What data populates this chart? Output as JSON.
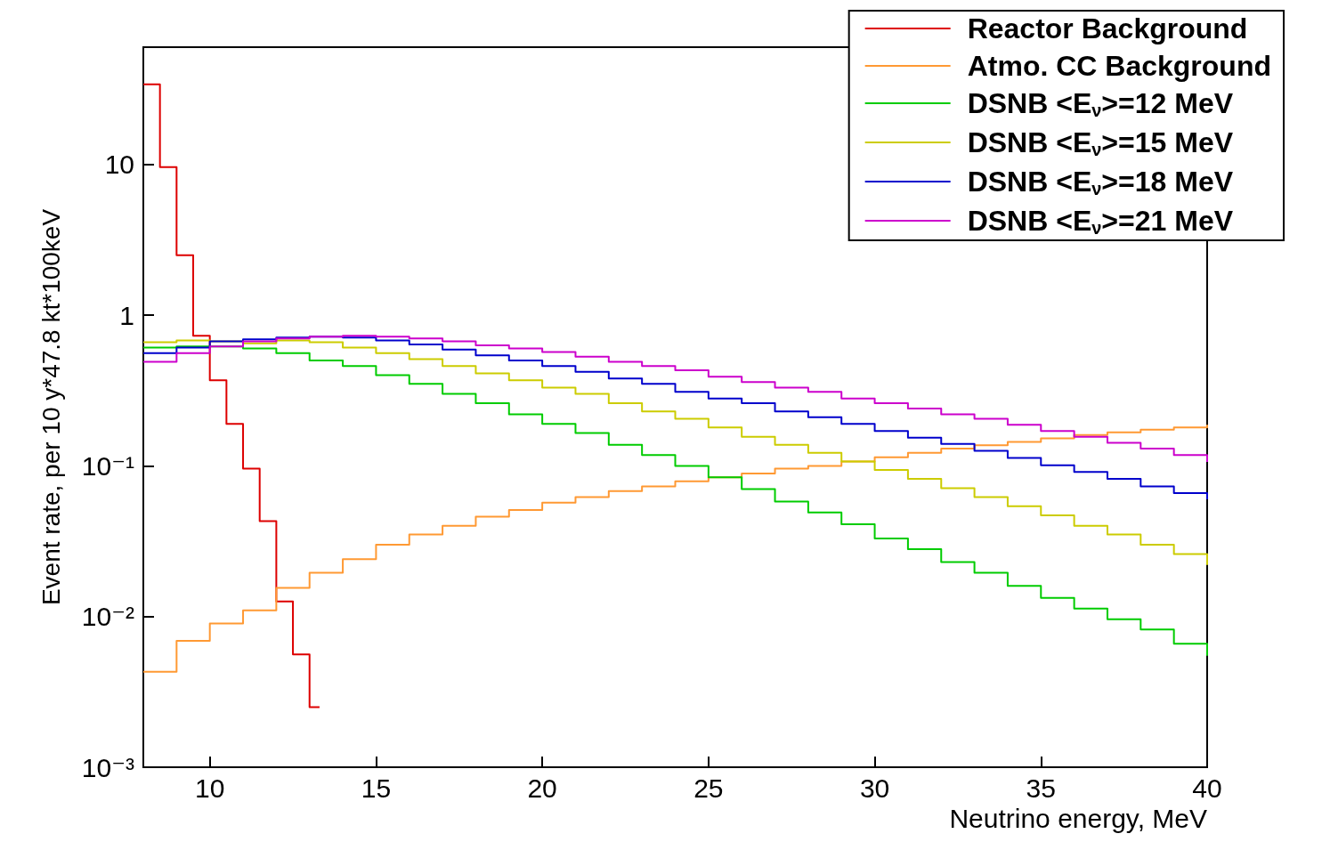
{
  "chart_data": {
    "type": "step",
    "xlabel": "Neutrino energy, MeV",
    "ylabel": "Event rate, per 10 y*47.8 kt*100keV",
    "log": "y",
    "marker": "none",
    "legend": "top right",
    "xlim": [
      8,
      40
    ],
    "xticks": [
      10,
      15,
      20,
      25,
      30,
      35,
      40
    ],
    "ylim": [
      0.001,
      60
    ],
    "yticks": [
      {
        "value": 0.001,
        "label": "10⁻³"
      },
      {
        "value": 0.01,
        "label": "10⁻²"
      },
      {
        "value": 0.1,
        "label": "10⁻¹"
      },
      1,
      10
    ],
    "x": [
      8,
      9,
      10,
      11,
      12,
      13,
      14,
      15,
      16,
      17,
      18,
      19,
      20,
      21,
      22,
      23,
      24,
      25,
      26,
      27,
      28,
      29,
      30,
      31,
      32,
      33,
      34,
      35,
      36,
      37,
      38,
      39,
      40
    ],
    "series": [
      {
        "name": "Reactor Background",
        "color": "#dd0000",
        "x": [
          8,
          8.5,
          9,
          9.5,
          10,
          10.5,
          11,
          11.5,
          12,
          12.5,
          13,
          13.3
        ],
        "values": [
          34,
          9.6,
          2.5,
          0.73,
          0.37,
          0.19,
          0.096,
          0.043,
          0.0126,
          0.0056,
          0.0025,
          0.0025
        ]
      },
      {
        "name": "Atmo. CC Background",
        "color": "#ff9933",
        "values": [
          0.0043,
          0.0069,
          0.009,
          0.011,
          0.0155,
          0.0195,
          0.024,
          0.03,
          0.035,
          0.04,
          0.046,
          0.051,
          0.057,
          0.062,
          0.068,
          0.073,
          0.079,
          0.084,
          0.089,
          0.096,
          0.1,
          0.107,
          0.114,
          0.122,
          0.13,
          0.137,
          0.144,
          0.152,
          0.16,
          0.167,
          0.174,
          0.18,
          0.187
        ]
      },
      {
        "name": "DSNB <E$_{ν}$>=12 MeV",
        "color": "#00cc00",
        "values": [
          0.61,
          0.62,
          0.62,
          0.6,
          0.56,
          0.5,
          0.46,
          0.4,
          0.35,
          0.3,
          0.26,
          0.22,
          0.19,
          0.165,
          0.138,
          0.118,
          0.1,
          0.084,
          0.07,
          0.058,
          0.049,
          0.041,
          0.033,
          0.028,
          0.023,
          0.0195,
          0.016,
          0.0133,
          0.0113,
          0.0096,
          0.0082,
          0.0066,
          0.0055
        ]
      },
      {
        "name": "DSNB <E$_{ν}$>=15 MeV",
        "color": "#cccc00",
        "values": [
          0.66,
          0.68,
          0.67,
          0.65,
          0.68,
          0.66,
          0.61,
          0.56,
          0.51,
          0.46,
          0.41,
          0.37,
          0.33,
          0.3,
          0.26,
          0.23,
          0.205,
          0.18,
          0.156,
          0.138,
          0.122,
          0.107,
          0.094,
          0.082,
          0.071,
          0.062,
          0.054,
          0.047,
          0.04,
          0.035,
          0.03,
          0.026,
          0.022
        ]
      },
      {
        "name": "DSNB <E$_{ν}$>=18 MeV",
        "color": "#0000cc",
        "values": [
          0.56,
          0.61,
          0.67,
          0.69,
          0.71,
          0.72,
          0.71,
          0.68,
          0.64,
          0.59,
          0.54,
          0.5,
          0.46,
          0.42,
          0.38,
          0.35,
          0.31,
          0.28,
          0.26,
          0.23,
          0.21,
          0.19,
          0.17,
          0.154,
          0.14,
          0.126,
          0.113,
          0.101,
          0.091,
          0.082,
          0.073,
          0.066,
          0.06
        ]
      },
      {
        "name": "DSNB <E$_{ν}$>=21 MeV",
        "color": "#cc00cc",
        "values": [
          0.49,
          0.56,
          0.62,
          0.67,
          0.7,
          0.72,
          0.73,
          0.72,
          0.7,
          0.67,
          0.63,
          0.6,
          0.57,
          0.53,
          0.49,
          0.46,
          0.43,
          0.39,
          0.36,
          0.33,
          0.31,
          0.28,
          0.26,
          0.24,
          0.22,
          0.205,
          0.187,
          0.17,
          0.156,
          0.142,
          0.13,
          0.118,
          0.106
        ]
      }
    ]
  }
}
